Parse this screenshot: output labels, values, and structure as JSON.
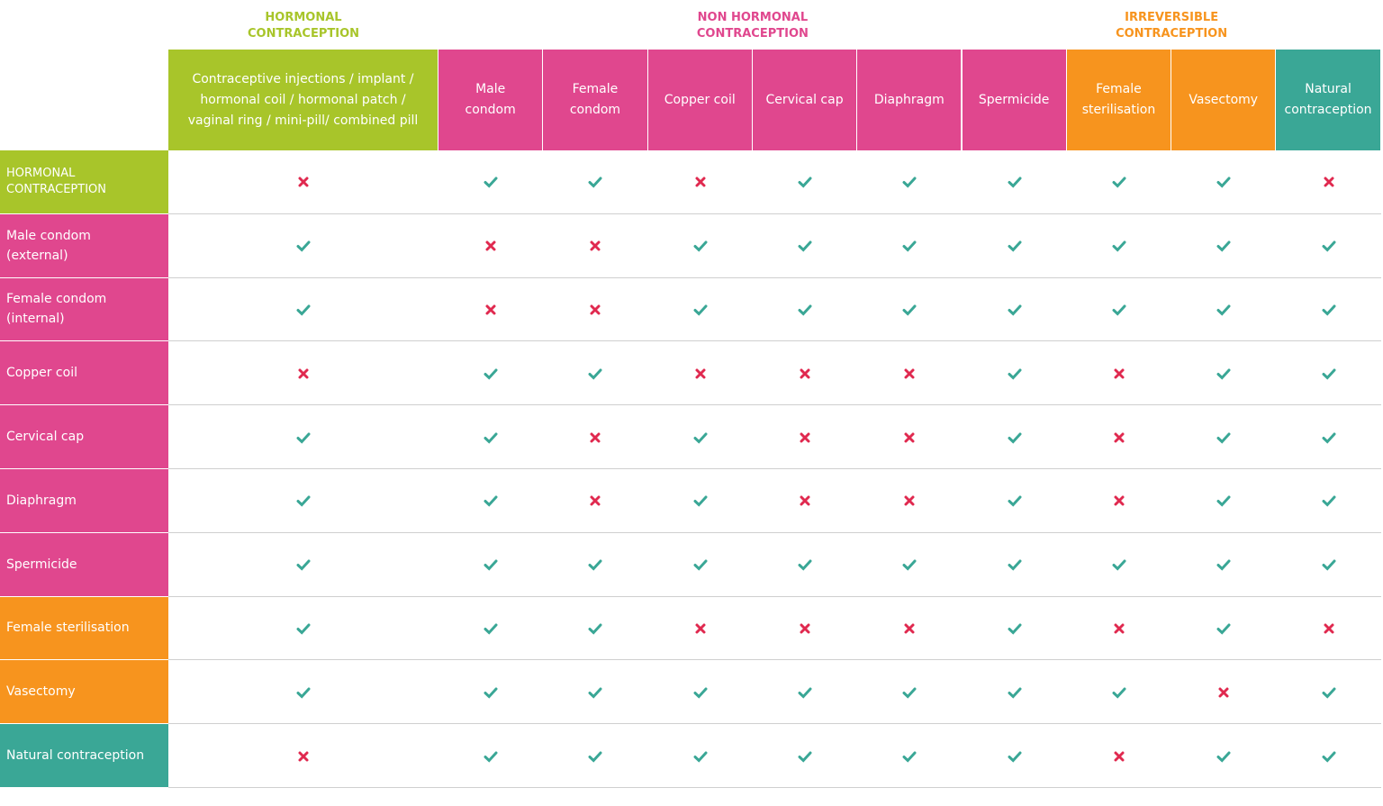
{
  "groups": [
    {
      "label": [
        "HORMONAL",
        "CONTRACEPTION"
      ],
      "color": "#a8c52a",
      "columns": [
        {
          "label": [
            "Contraceptive injections / implant /",
            "hormonal coil / hormonal patch /",
            "vaginal ring / mini-pill/ combined pill"
          ]
        }
      ]
    },
    {
      "label": [
        "NON HORMONAL",
        "CONTRACEPTION"
      ],
      "color": "#e0478e",
      "columns": [
        {
          "label": [
            "Male",
            "condom"
          ]
        },
        {
          "label": [
            "Female",
            "condom"
          ]
        },
        {
          "label": [
            "Copper coil"
          ]
        },
        {
          "label": [
            "Cervical cap"
          ]
        },
        {
          "label": [
            "Diaphragm"
          ]
        },
        {
          "label": [
            "Spermicide"
          ]
        }
      ]
    },
    {
      "label": [
        "IRREVERSIBLE",
        "CONTRACEPTION"
      ],
      "color": "#f7941e",
      "columns": [
        {
          "label": [
            "Female",
            "sterilisation"
          ]
        },
        {
          "label": [
            "Vasectomy"
          ]
        }
      ]
    },
    {
      "label": null,
      "color": "#3aa796",
      "columns": [
        {
          "label": [
            "Natural",
            "contraception"
          ]
        }
      ]
    }
  ],
  "rows": [
    {
      "label": [
        "HORMONAL",
        "CONTRACEPTION"
      ],
      "color": "#a8c52a",
      "cells": [
        false,
        true,
        true,
        false,
        true,
        true,
        true,
        true,
        true,
        false
      ]
    },
    {
      "label": [
        "Male condom",
        "(external)"
      ],
      "color": "#e0478e",
      "cells": [
        true,
        false,
        false,
        true,
        true,
        true,
        true,
        true,
        true,
        true
      ]
    },
    {
      "label": [
        "Female condom",
        "(internal)"
      ],
      "color": "#e0478e",
      "cells": [
        true,
        false,
        false,
        true,
        true,
        true,
        true,
        true,
        true,
        true
      ]
    },
    {
      "label": [
        "Copper coil"
      ],
      "color": "#e0478e",
      "cells": [
        false,
        true,
        true,
        false,
        false,
        false,
        true,
        false,
        true,
        true
      ]
    },
    {
      "label": [
        "Cervical cap"
      ],
      "color": "#e0478e",
      "cells": [
        true,
        true,
        false,
        true,
        false,
        false,
        true,
        false,
        true,
        true
      ]
    },
    {
      "label": [
        "Diaphragm"
      ],
      "color": "#e0478e",
      "cells": [
        true,
        true,
        false,
        true,
        false,
        false,
        true,
        false,
        true,
        true
      ]
    },
    {
      "label": [
        "Spermicide"
      ],
      "color": "#e0478e",
      "cells": [
        true,
        true,
        true,
        true,
        true,
        true,
        true,
        true,
        true,
        true
      ]
    },
    {
      "label": [
        "Female sterilisation"
      ],
      "color": "#f7941e",
      "cells": [
        true,
        true,
        true,
        false,
        false,
        false,
        true,
        false,
        true,
        false
      ]
    },
    {
      "label": [
        "Vasectomy"
      ],
      "color": "#f7941e",
      "cells": [
        true,
        true,
        true,
        true,
        true,
        true,
        true,
        true,
        false,
        true
      ]
    },
    {
      "label": [
        "Natural contraception"
      ],
      "color": "#3aa796",
      "cells": [
        false,
        true,
        true,
        true,
        true,
        true,
        true,
        false,
        true,
        true
      ]
    }
  ],
  "check_color": "#3aa796",
  "cross_color": "#e0294f"
}
